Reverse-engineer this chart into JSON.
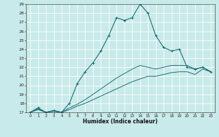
{
  "title": "",
  "xlabel": "Humidex (Indice chaleur)",
  "background_color": "#c8eaea",
  "grid_color": "#ffffff",
  "line_color": "#1a6b6b",
  "xlim": [
    -0.5,
    23.5
  ],
  "ylim": [
    17,
    29
  ],
  "xticks": [
    0,
    1,
    2,
    3,
    4,
    5,
    6,
    7,
    8,
    9,
    10,
    11,
    12,
    13,
    14,
    15,
    16,
    17,
    18,
    19,
    20,
    21,
    22,
    23
  ],
  "yticks": [
    17,
    18,
    19,
    20,
    21,
    22,
    23,
    24,
    25,
    26,
    27,
    28,
    29
  ],
  "line1_x": [
    0,
    1,
    2,
    3,
    4,
    5,
    6,
    7,
    8,
    9,
    10,
    11,
    12,
    13,
    14,
    15,
    16,
    17,
    18,
    19,
    20,
    21,
    22,
    23
  ],
  "line1_y": [
    17,
    17.4,
    17,
    17.1,
    17,
    17.3,
    17.7,
    18.0,
    18.4,
    18.8,
    19.2,
    19.6,
    20.0,
    20.4,
    20.7,
    21.0,
    21.0,
    21.2,
    21.4,
    21.5,
    21.5,
    21.2,
    21.8,
    21.5
  ],
  "line2_x": [
    0,
    1,
    2,
    3,
    4,
    5,
    6,
    7,
    8,
    9,
    10,
    11,
    12,
    13,
    14,
    15,
    16,
    17,
    18,
    19,
    20,
    21,
    22,
    23
  ],
  "line2_y": [
    17,
    17.3,
    17,
    17.2,
    17,
    17.5,
    17.9,
    18.4,
    19.0,
    19.6,
    20.2,
    20.8,
    21.3,
    21.8,
    22.2,
    22.0,
    21.8,
    22.0,
    22.2,
    22.2,
    22.2,
    21.8,
    22.0,
    21.5
  ],
  "line3_x": [
    0,
    1,
    2,
    3,
    4,
    5,
    6,
    7,
    8,
    9,
    10,
    11,
    12,
    13,
    14,
    15,
    16,
    17,
    18,
    19,
    20,
    21,
    22,
    23
  ],
  "line3_y": [
    17,
    17.5,
    17,
    17.2,
    17,
    18.0,
    20.2,
    21.5,
    22.5,
    23.8,
    25.5,
    27.5,
    27.2,
    27.5,
    29,
    28,
    25.5,
    24.2,
    23.8,
    24.0,
    22.0,
    21.8,
    22.0,
    21.5
  ]
}
